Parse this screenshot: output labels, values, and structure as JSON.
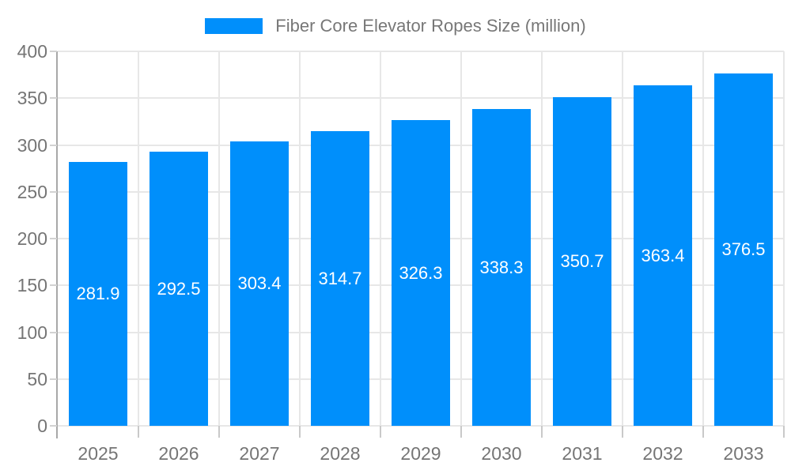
{
  "legend": {
    "label": "Fiber Core Elevator Ropes Size (million)"
  },
  "chart_data": {
    "type": "bar",
    "title": "Fiber Core Elevator Ropes Size (million)",
    "series_name": "Fiber Core Elevator Ropes Size (million)",
    "categories": [
      "2025",
      "2026",
      "2027",
      "2028",
      "2029",
      "2030",
      "2031",
      "2032",
      "2033"
    ],
    "values": [
      281.9,
      292.5,
      303.4,
      314.7,
      326.3,
      338.3,
      350.7,
      363.4,
      376.5
    ],
    "xlabel": "",
    "ylabel": "",
    "ylim": [
      0,
      400
    ],
    "yticks": [
      0,
      50,
      100,
      150,
      200,
      250,
      300,
      350,
      400
    ],
    "grid": true,
    "legend_position": "top",
    "bar_color": "#008FFB",
    "value_label_color": "#ffffff",
    "axis_text_color": "#757575",
    "gridline_color": "#e7e7e7"
  }
}
